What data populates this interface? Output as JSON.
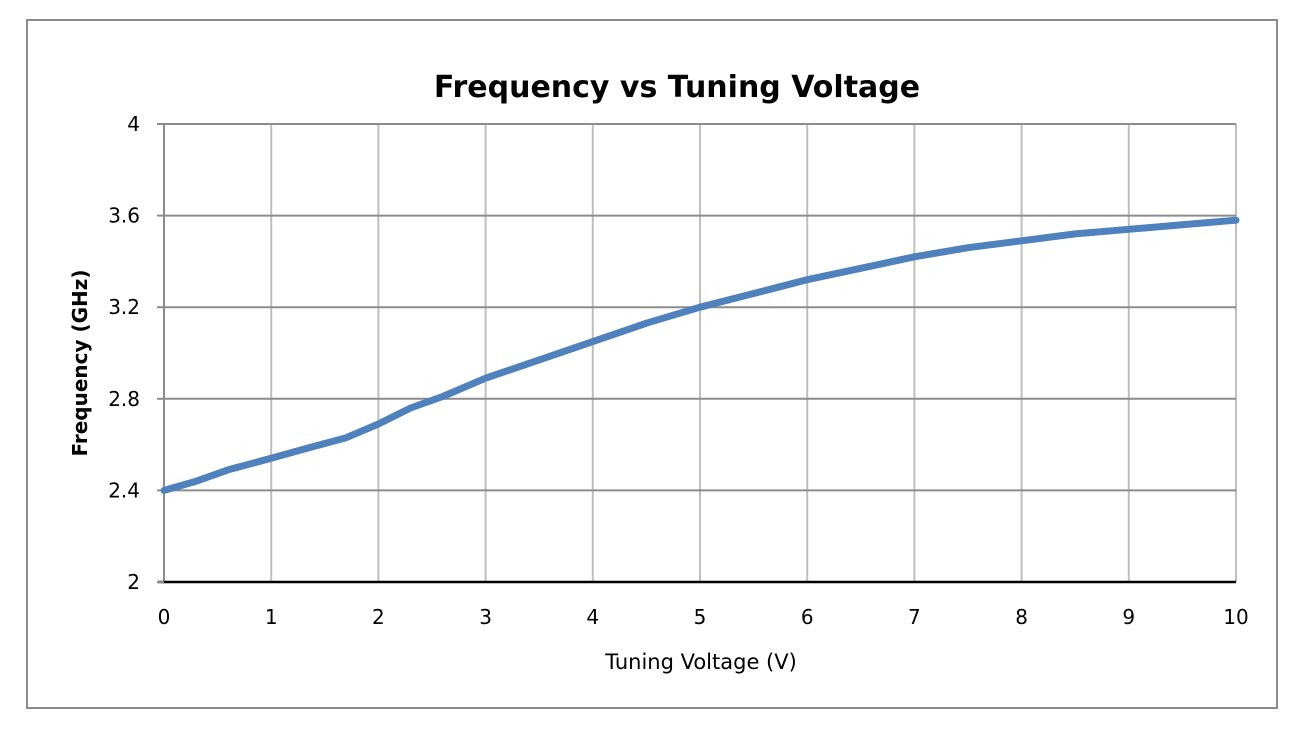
{
  "chart_data": {
    "type": "line",
    "title": "Frequency vs Tuning Voltage",
    "xlabel": "Tuning Voltage (V)",
    "ylabel": "Frequency (GHz)",
    "xlim": [
      0,
      10
    ],
    "ylim": [
      2,
      4
    ],
    "x_ticks": [
      "0",
      "1",
      "2",
      "3",
      "4",
      "5",
      "6",
      "7",
      "8",
      "9",
      "10"
    ],
    "y_ticks": [
      "2",
      "2.4",
      "2.8",
      "3.2",
      "3.6",
      "4"
    ],
    "x_tick_values": [
      0,
      1,
      2,
      3,
      4,
      5,
      6,
      7,
      8,
      9,
      10
    ],
    "y_tick_values": [
      2,
      2.4,
      2.8,
      3.2,
      3.6,
      4
    ],
    "grid": true,
    "legend": "none",
    "series": [
      {
        "color": "#4f81bd",
        "x": [
          0,
          0.3,
          0.6,
          1.0,
          1.3,
          1.7,
          2.0,
          2.3,
          2.6,
          3.0,
          3.5,
          4.0,
          4.5,
          5.0,
          5.5,
          6.0,
          6.5,
          7.0,
          7.5,
          8.0,
          8.5,
          9.0,
          9.5,
          10.0
        ],
        "y": [
          2.4,
          2.44,
          2.49,
          2.54,
          2.58,
          2.63,
          2.69,
          2.76,
          2.81,
          2.89,
          2.97,
          3.05,
          3.13,
          3.2,
          3.26,
          3.32,
          3.37,
          3.42,
          3.46,
          3.49,
          3.52,
          3.54,
          3.56,
          3.58
        ]
      }
    ]
  }
}
